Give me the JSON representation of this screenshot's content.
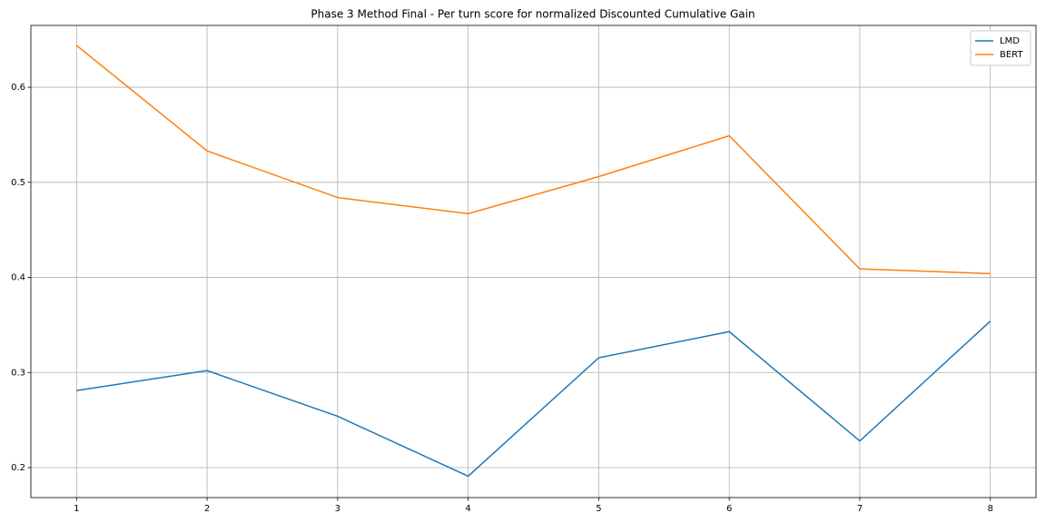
{
  "chart_data": {
    "type": "line",
    "title": "Phase 3 Method Final - Per turn score for normalized Discounted Cumulative Gain",
    "x": [
      1,
      2,
      3,
      4,
      5,
      6,
      7,
      8
    ],
    "series": [
      {
        "name": "LMD",
        "color": "#1f77b4",
        "values": [
          0.281,
          0.302,
          0.254,
          0.191,
          0.3155,
          0.343,
          0.228,
          0.354
        ]
      },
      {
        "name": "BERT",
        "color": "#ff7f0e",
        "values": [
          0.644,
          0.533,
          0.484,
          0.467,
          0.506,
          0.549,
          0.409,
          0.404
        ]
      }
    ],
    "xlim": [
      0.65,
      8.35
    ],
    "xticks": [
      1,
      2,
      3,
      4,
      5,
      6,
      7,
      8
    ],
    "ylim": [
      0.1685,
      0.665
    ],
    "yticks": [
      0.2,
      0.3,
      0.4,
      0.5,
      0.6
    ],
    "grid": true,
    "legend": "upper right"
  }
}
